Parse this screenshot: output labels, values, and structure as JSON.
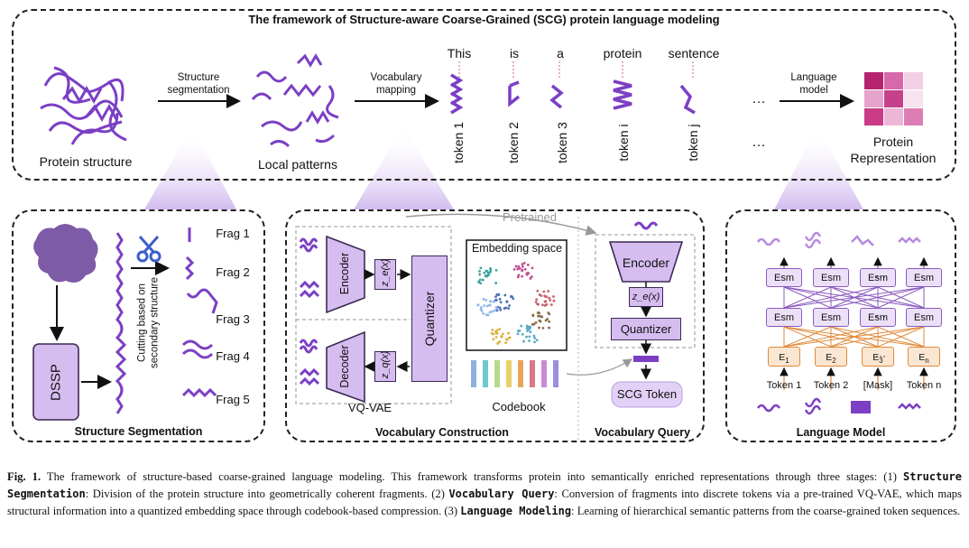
{
  "top": {
    "title": "The framework of Structure-aware Coarse-Grained (SCG) protein language modeling",
    "protein_structure": "Protein structure",
    "structure_segmentation_arrow": [
      "Structure",
      "segmentation"
    ],
    "local_patterns": "Local patterns",
    "vocabulary_mapping_arrow": [
      "Vocabulary",
      "mapping"
    ],
    "words": [
      "This",
      "is",
      "a",
      "protein",
      "sentence"
    ],
    "tokens": [
      "token 1",
      "token 2",
      "token 3",
      "token i",
      "token j"
    ],
    "ellipsis": "…",
    "language_model_arrow": [
      "Language",
      "model"
    ],
    "protein_representation": [
      "Protein",
      "Representation"
    ]
  },
  "segmentation": {
    "frags": [
      "Frag 1",
      "Frag 2",
      "Frag 3",
      "Frag 4",
      "Frag 5"
    ],
    "dssp": "DSSP",
    "cutting": [
      "Cutting based on",
      "secondary structure"
    ],
    "title": "Structure Segmentation"
  },
  "vocab_construction": {
    "pretrained": "Pretrained",
    "encoder": "Encoder",
    "decoder": "Decoder",
    "quantizer": "Quantizer",
    "ze": "z_e(x)",
    "zq": "z_q(x)",
    "embedding_space": "Embedding space",
    "vqvae": "VQ-VAE",
    "codebook": "Codebook",
    "title": "Vocabulary Construction"
  },
  "vocab_query": {
    "encoder": "Encoder",
    "ze": "z_e(x)",
    "quantizer": "Quantizer",
    "scg_token": "SCG Token",
    "title": "Vocabulary Query"
  },
  "language_model": {
    "esm": "Esm",
    "e_labels": [
      "E1",
      "E2",
      "E3",
      "En"
    ],
    "token_labels": [
      "Token 1",
      "Token 2",
      "[Mask]",
      "Token n"
    ],
    "dots": "···",
    "title": "Language Model"
  },
  "colors": {
    "purple": "#7b3fc4",
    "light_purple": "#d6bdf0",
    "esm_fill": "#ece0f8",
    "e_fill": "#fbe6d2",
    "e_border": "#e08a3a",
    "heatmap": [
      "#b4246e",
      "#d768a9",
      "#f2cfe4",
      "#e6a3cb",
      "#c6418a",
      "#f7e3ef",
      "#c93b86",
      "#eeb6d6",
      "#dd7db5"
    ],
    "codebook_bars": [
      "#8fb0e0",
      "#6fc7d0",
      "#b7d98b",
      "#e8d06a",
      "#e8a35d",
      "#d97a8a",
      "#c98ad6",
      "#9c8ee0"
    ]
  },
  "caption": {
    "label": "Fig. 1.",
    "s1": " The framework of structure-based coarse-grained language modeling. This framework transforms protein into semantically enriched representations through three stages: (1) ",
    "b1": "Structure Segmentation",
    "s2": ": Division of the protein structure into geometrically coherent fragments. (2) ",
    "b2": "Vocabulary Query",
    "s3": ": Conversion of fragments into discrete tokens via a pre-trained VQ-VAE, which maps structural information into a quantized embedding space through codebook-based compression. (3) ",
    "b3": "Language Modeling",
    "s4": ": Learning of hierarchical semantic patterns from the coarse-grained token sequences."
  }
}
